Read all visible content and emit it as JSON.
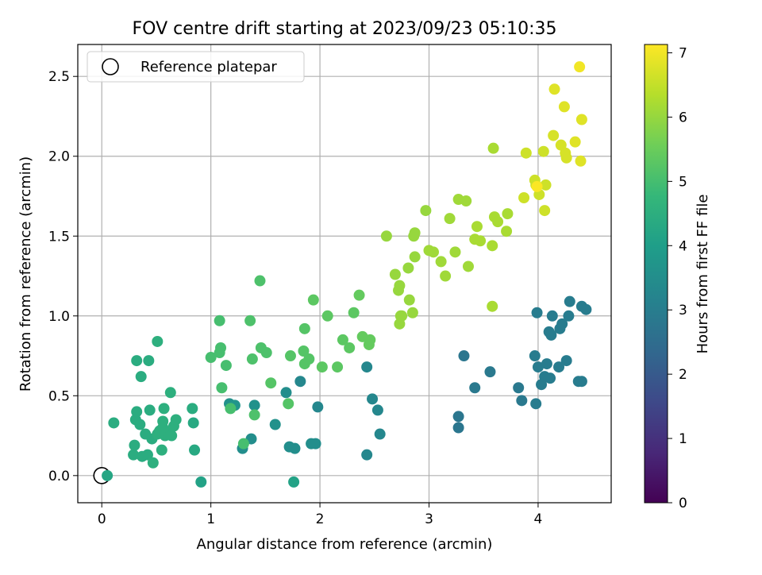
{
  "chart_data": {
    "type": "scatter",
    "title": "FOV centre drift starting at 2023/09/23 05:10:35",
    "xlabel": "Angular distance from reference (arcmin)",
    "ylabel": "Rotation from reference (arcmin)",
    "colorbar_label": "Hours from first FF file",
    "xlim": [
      -0.22,
      4.67
    ],
    "ylim": [
      -0.17,
      2.7
    ],
    "xticks": [
      "0",
      "1",
      "2",
      "3",
      "4"
    ],
    "yticks": [
      "0.0",
      "0.5",
      "1.0",
      "1.5",
      "2.0",
      "2.5"
    ],
    "colorbar_range": [
      0,
      7.13
    ],
    "colorbar_ticks": [
      "0",
      "1",
      "2",
      "3",
      "4",
      "5",
      "6",
      "7"
    ],
    "grid": true,
    "legend": {
      "position": "top-left",
      "entries": [
        "Reference platepar"
      ]
    },
    "reference_point": {
      "x": 0.0,
      "y": 0.0
    },
    "colormap": [
      "#440154",
      "#482878",
      "#3e4989",
      "#31688e",
      "#26828e",
      "#1f9e89",
      "#35b779",
      "#6ece58",
      "#b5de2b",
      "#fde725"
    ],
    "points": [
      [
        0.05,
        0.0,
        4.2
      ],
      [
        3.27,
        0.3,
        2.8
      ],
      [
        3.27,
        0.37,
        2.8
      ],
      [
        3.32,
        0.75,
        2.8
      ],
      [
        3.42,
        0.55,
        2.9
      ],
      [
        3.56,
        0.65,
        2.9
      ],
      [
        3.82,
        0.55,
        2.9
      ],
      [
        3.85,
        0.47,
        2.9
      ],
      [
        3.98,
        0.45,
        3.0
      ],
      [
        3.97,
        0.75,
        3.0
      ],
      [
        4.0,
        0.68,
        3.0
      ],
      [
        3.99,
        1.02,
        3.0
      ],
      [
        4.03,
        0.57,
        3.0
      ],
      [
        4.06,
        0.62,
        3.0
      ],
      [
        4.08,
        0.7,
        3.0
      ],
      [
        4.11,
        0.61,
        3.0
      ],
      [
        4.1,
        0.9,
        3.0
      ],
      [
        4.12,
        0.88,
        3.0
      ],
      [
        4.13,
        1.0,
        3.0
      ],
      [
        4.19,
        0.68,
        3.0
      ],
      [
        4.2,
        0.92,
        3.0
      ],
      [
        4.22,
        0.95,
        3.0
      ],
      [
        4.26,
        0.72,
        3.0
      ],
      [
        4.28,
        1.0,
        3.0
      ],
      [
        4.29,
        1.09,
        3.0
      ],
      [
        4.37,
        0.59,
        3.0
      ],
      [
        4.4,
        0.59,
        3.0
      ],
      [
        4.4,
        1.06,
        3.0
      ],
      [
        4.44,
        1.04,
        3.0
      ],
      [
        2.43,
        0.13,
        3.3
      ],
      [
        2.55,
        0.26,
        3.3
      ],
      [
        2.43,
        0.68,
        3.3
      ],
      [
        2.48,
        0.48,
        3.3
      ],
      [
        2.53,
        0.41,
        3.3
      ],
      [
        1.82,
        0.59,
        3.3
      ],
      [
        1.98,
        0.43,
        3.3
      ],
      [
        1.72,
        0.18,
        3.5
      ],
      [
        1.77,
        0.17,
        3.5
      ],
      [
        1.92,
        0.2,
        3.5
      ],
      [
        1.96,
        0.2,
        3.5
      ],
      [
        1.69,
        0.52,
        3.5
      ],
      [
        1.29,
        0.17,
        3.5
      ],
      [
        1.37,
        0.23,
        3.5
      ],
      [
        1.4,
        0.44,
        3.6
      ],
      [
        1.59,
        0.32,
        3.6
      ],
      [
        1.17,
        0.45,
        3.6
      ],
      [
        1.22,
        0.44,
        3.7
      ],
      [
        0.91,
        -0.04,
        4.1
      ],
      [
        1.76,
        -0.04,
        4.1
      ],
      [
        0.85,
        0.16,
        4.3
      ],
      [
        0.84,
        0.33,
        4.3
      ],
      [
        0.83,
        0.42,
        4.4
      ],
      [
        0.11,
        0.33,
        4.4
      ],
      [
        0.29,
        0.13,
        4.4
      ],
      [
        0.3,
        0.19,
        4.4
      ],
      [
        0.31,
        0.35,
        4.4
      ],
      [
        0.32,
        0.4,
        4.4
      ],
      [
        0.32,
        0.72,
        4.4
      ],
      [
        0.35,
        0.32,
        4.4
      ],
      [
        0.36,
        0.62,
        4.4
      ],
      [
        0.37,
        0.12,
        4.4
      ],
      [
        0.4,
        0.26,
        4.4
      ],
      [
        0.42,
        0.13,
        4.4
      ],
      [
        0.43,
        0.72,
        4.4
      ],
      [
        0.44,
        0.41,
        4.4
      ],
      [
        0.46,
        0.23,
        4.4
      ],
      [
        0.47,
        0.08,
        4.5
      ],
      [
        0.51,
        0.26,
        4.5
      ],
      [
        0.51,
        0.84,
        4.5
      ],
      [
        0.53,
        0.28,
        4.5
      ],
      [
        0.55,
        0.16,
        4.5
      ],
      [
        0.56,
        0.34,
        4.5
      ],
      [
        0.57,
        0.42,
        4.5
      ],
      [
        0.58,
        0.25,
        4.5
      ],
      [
        0.61,
        0.27,
        4.5
      ],
      [
        0.63,
        0.52,
        4.5
      ],
      [
        0.64,
        0.25,
        4.5
      ],
      [
        0.66,
        0.31,
        4.5
      ],
      [
        0.68,
        0.35,
        4.5
      ],
      [
        0.56,
        0.3,
        4.5
      ],
      [
        1.3,
        0.2,
        5.0
      ],
      [
        1.18,
        0.42,
        5.0
      ],
      [
        1.1,
        0.55,
        5.0
      ],
      [
        1.14,
        0.69,
        5.0
      ],
      [
        1.0,
        0.74,
        5.0
      ],
      [
        1.08,
        0.77,
        5.0
      ],
      [
        1.09,
        0.8,
        5.0
      ],
      [
        1.08,
        0.97,
        5.0
      ],
      [
        1.4,
        0.38,
        5.1
      ],
      [
        1.36,
        0.97,
        5.1
      ],
      [
        1.38,
        0.73,
        5.1
      ],
      [
        1.46,
        0.8,
        5.1
      ],
      [
        1.51,
        0.77,
        5.1
      ],
      [
        1.45,
        1.22,
        5.1
      ],
      [
        1.55,
        0.58,
        5.2
      ],
      [
        1.71,
        0.45,
        5.2
      ],
      [
        1.73,
        0.75,
        5.2
      ],
      [
        1.85,
        0.78,
        5.2
      ],
      [
        1.86,
        0.7,
        5.2
      ],
      [
        1.86,
        0.92,
        5.2
      ],
      [
        1.9,
        0.73,
        5.2
      ],
      [
        1.94,
        1.1,
        5.3
      ],
      [
        2.02,
        0.68,
        5.3
      ],
      [
        2.07,
        1.0,
        5.3
      ],
      [
        2.16,
        0.68,
        5.3
      ],
      [
        2.21,
        0.85,
        5.3
      ],
      [
        2.27,
        0.8,
        5.3
      ],
      [
        2.31,
        1.02,
        5.3
      ],
      [
        2.36,
        1.13,
        5.4
      ],
      [
        2.39,
        0.87,
        5.4
      ],
      [
        2.45,
        0.82,
        5.4
      ],
      [
        2.46,
        0.85,
        5.4
      ],
      [
        2.61,
        1.5,
        6.0
      ],
      [
        2.69,
        1.26,
        6.0
      ],
      [
        2.72,
        1.16,
        6.0
      ],
      [
        2.73,
        1.19,
        6.0
      ],
      [
        2.73,
        0.95,
        6.0
      ],
      [
        2.74,
        1.0,
        6.0
      ],
      [
        2.75,
        1.0,
        6.0
      ],
      [
        2.81,
        1.3,
        6.0
      ],
      [
        2.82,
        1.1,
        6.0
      ],
      [
        2.85,
        1.02,
        6.0
      ],
      [
        2.86,
        1.5,
        6.0
      ],
      [
        2.87,
        1.52,
        6.0
      ],
      [
        2.87,
        1.37,
        6.0
      ],
      [
        2.97,
        1.66,
        6.0
      ],
      [
        3.0,
        1.41,
        6.1
      ],
      [
        3.04,
        1.4,
        6.1
      ],
      [
        3.11,
        1.34,
        6.1
      ],
      [
        3.15,
        1.25,
        6.1
      ],
      [
        3.19,
        1.61,
        6.1
      ],
      [
        3.24,
        1.4,
        6.1
      ],
      [
        3.27,
        1.73,
        6.1
      ],
      [
        3.34,
        1.72,
        6.1
      ],
      [
        3.36,
        1.31,
        6.1
      ],
      [
        3.42,
        1.48,
        6.2
      ],
      [
        3.44,
        1.56,
        6.2
      ],
      [
        3.47,
        1.47,
        6.2
      ],
      [
        3.58,
        1.44,
        6.2
      ],
      [
        3.58,
        1.06,
        6.2
      ],
      [
        3.6,
        1.62,
        6.2
      ],
      [
        3.59,
        2.05,
        6.2
      ],
      [
        3.63,
        1.59,
        6.2
      ],
      [
        3.71,
        1.53,
        6.2
      ],
      [
        3.72,
        1.64,
        6.2
      ],
      [
        3.87,
        1.74,
        6.6
      ],
      [
        3.89,
        2.02,
        6.6
      ],
      [
        3.97,
        1.85,
        6.6
      ],
      [
        3.98,
        1.82,
        6.6
      ],
      [
        4.01,
        1.76,
        6.6
      ],
      [
        4.05,
        2.03,
        6.6
      ],
      [
        4.06,
        1.66,
        6.6
      ],
      [
        4.07,
        1.82,
        6.6
      ],
      [
        4.14,
        2.13,
        6.7
      ],
      [
        4.15,
        2.42,
        6.8
      ],
      [
        4.21,
        2.07,
        6.7
      ],
      [
        4.24,
        2.31,
        6.8
      ],
      [
        4.25,
        2.02,
        6.7
      ],
      [
        4.26,
        1.99,
        6.7
      ],
      [
        4.34,
        2.09,
        6.8
      ],
      [
        4.39,
        1.97,
        6.8
      ],
      [
        4.4,
        2.23,
        6.8
      ],
      [
        4.38,
        2.56,
        7.0
      ],
      [
        3.99,
        1.81,
        7.1
      ]
    ]
  }
}
